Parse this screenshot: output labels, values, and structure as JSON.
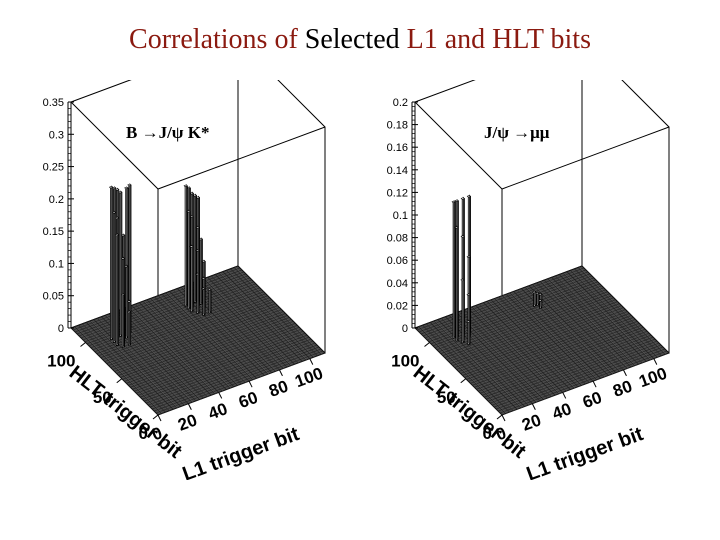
{
  "title": {
    "part1": "Correlations of ",
    "part2": "Selected",
    "part3": " L1 and HLT bits"
  },
  "colors": {
    "title_accent": "#8b1a10",
    "surface": "#4a4a4a",
    "bar_face": "#f4f4f4",
    "axis": "#000000"
  },
  "chart_data": [
    {
      "type": "bar3d",
      "label": "B →J/ψ K*",
      "xlabel": "L1 trigger bit",
      "ylabel": "HLT trigger bit",
      "x_ticks": [
        "0",
        "20",
        "40",
        "60",
        "80",
        "100"
      ],
      "y_ticks": [
        "0",
        "50",
        "100"
      ],
      "z_ticks": [
        "0",
        "0.05",
        "0.1",
        "0.15",
        "0.2",
        "0.25",
        "0.3",
        "0.35"
      ],
      "xlim": [
        0,
        110
      ],
      "ylim": [
        0,
        120
      ],
      "zlim": [
        0,
        0.35
      ],
      "bars": [
        {
          "x": 14,
          "y": 94,
          "z": 0.235
        },
        {
          "x": 16,
          "y": 94,
          "z": 0.232
        },
        {
          "x": 18,
          "y": 94,
          "z": 0.228
        },
        {
          "x": 20,
          "y": 94,
          "z": 0.222
        },
        {
          "x": 24,
          "y": 94,
          "z": 0.225
        },
        {
          "x": 26,
          "y": 94,
          "z": 0.228
        },
        {
          "x": 14,
          "y": 90,
          "z": 0.2
        },
        {
          "x": 16,
          "y": 90,
          "z": 0.19
        },
        {
          "x": 20,
          "y": 90,
          "z": 0.16
        },
        {
          "x": 22,
          "y": 90,
          "z": 0.11
        },
        {
          "x": 14,
          "y": 86,
          "z": 0.17
        },
        {
          "x": 18,
          "y": 86,
          "z": 0.13
        },
        {
          "x": 22,
          "y": 86,
          "z": 0.06
        },
        {
          "x": 16,
          "y": 82,
          "z": 0.08
        },
        {
          "x": 20,
          "y": 82,
          "z": 0.05
        },
        {
          "x": 66,
          "y": 100,
          "z": 0.185
        },
        {
          "x": 68,
          "y": 100,
          "z": 0.18
        },
        {
          "x": 70,
          "y": 100,
          "z": 0.17
        },
        {
          "x": 72,
          "y": 100,
          "z": 0.165
        },
        {
          "x": 74,
          "y": 100,
          "z": 0.16
        },
        {
          "x": 66,
          "y": 96,
          "z": 0.15
        },
        {
          "x": 68,
          "y": 96,
          "z": 0.14
        },
        {
          "x": 72,
          "y": 96,
          "z": 0.12
        },
        {
          "x": 74,
          "y": 96,
          "z": 0.1
        },
        {
          "x": 66,
          "y": 92,
          "z": 0.1
        },
        {
          "x": 70,
          "y": 92,
          "z": 0.09
        },
        {
          "x": 74,
          "y": 92,
          "z": 0.07
        },
        {
          "x": 68,
          "y": 88,
          "z": 0.06
        },
        {
          "x": 72,
          "y": 88,
          "z": 0.05
        },
        {
          "x": 70,
          "y": 84,
          "z": 0.04
        },
        {
          "x": 74,
          "y": 84,
          "z": 0.035
        }
      ]
    },
    {
      "type": "bar3d",
      "label": "J/ψ →μμ",
      "xlabel": "L1 trigger bit",
      "ylabel": "HLT trigger bit",
      "x_ticks": [
        "0",
        "20",
        "40",
        "60",
        "80",
        "100"
      ],
      "y_ticks": [
        "0",
        "50",
        "100"
      ],
      "z_ticks": [
        "0",
        "0.02",
        "0.04",
        "0.06",
        "0.08",
        "0.1",
        "0.12",
        "0.14",
        "0.16",
        "0.18",
        "0.2"
      ],
      "xlim": [
        0,
        110
      ],
      "ylim": [
        0,
        120
      ],
      "zlim": [
        0,
        0.2
      ],
      "bars": [
        {
          "x": 14,
          "y": 96,
          "z": 0.12
        },
        {
          "x": 16,
          "y": 96,
          "z": 0.12
        },
        {
          "x": 20,
          "y": 96,
          "z": 0.12
        },
        {
          "x": 24,
          "y": 96,
          "z": 0.12
        },
        {
          "x": 14,
          "y": 92,
          "z": 0.1
        },
        {
          "x": 18,
          "y": 92,
          "z": 0.09
        },
        {
          "x": 22,
          "y": 92,
          "z": 0.07
        },
        {
          "x": 16,
          "y": 88,
          "z": 0.055
        },
        {
          "x": 20,
          "y": 88,
          "z": 0.04
        },
        {
          "x": 18,
          "y": 84,
          "z": 0.02
        },
        {
          "x": 68,
          "y": 98,
          "z": 0.012
        },
        {
          "x": 70,
          "y": 98,
          "z": 0.01
        },
        {
          "x": 72,
          "y": 98,
          "z": 0.008
        },
        {
          "x": 70,
          "y": 94,
          "z": 0.006
        }
      ]
    }
  ]
}
